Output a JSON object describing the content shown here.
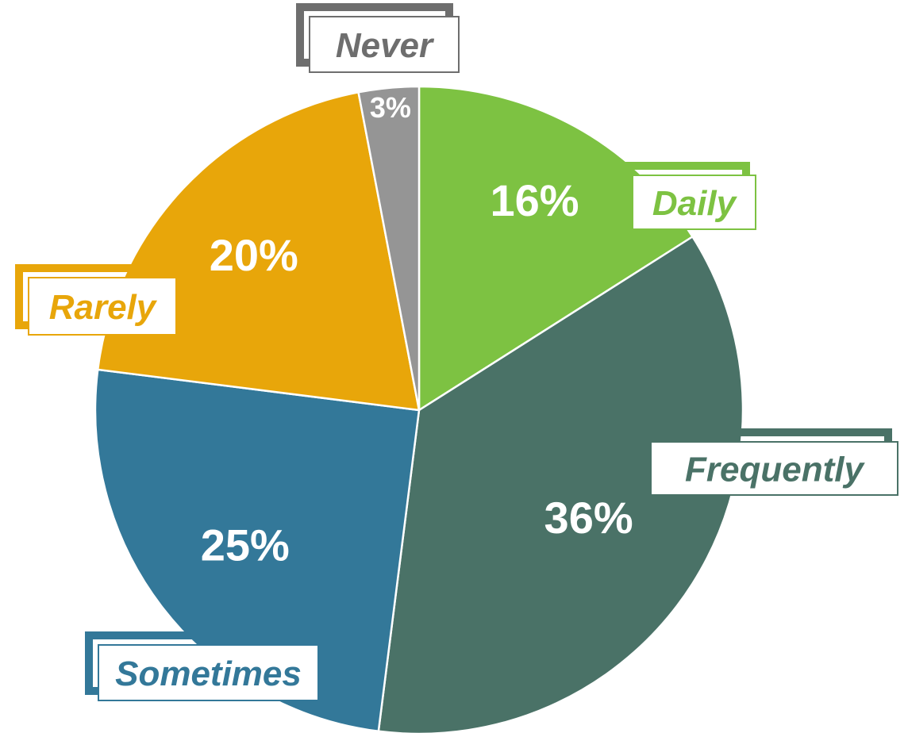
{
  "chart_data": {
    "type": "pie",
    "title": "",
    "start_angle_deg": 0,
    "direction": "clockwise",
    "slices": [
      {
        "label": "Daily",
        "value": 16,
        "value_label": "16%",
        "color": "#7dc242"
      },
      {
        "label": "Frequently",
        "value": 36,
        "value_label": "36%",
        "color": "#4a7267"
      },
      {
        "label": "Sometimes",
        "value": 25,
        "value_label": "25%",
        "color": "#337899"
      },
      {
        "label": "Rarely",
        "value": 20,
        "value_label": "20%",
        "color": "#e8a60a"
      },
      {
        "label": "Never",
        "value": 3,
        "value_label": "3%",
        "color": "#959595"
      }
    ],
    "label_text_colors": {
      "Daily": "#7dc242",
      "Frequently": "#4a7267",
      "Sometimes": "#337899",
      "Rarely": "#e8a60a",
      "Never": "#6e6e6e"
    }
  }
}
